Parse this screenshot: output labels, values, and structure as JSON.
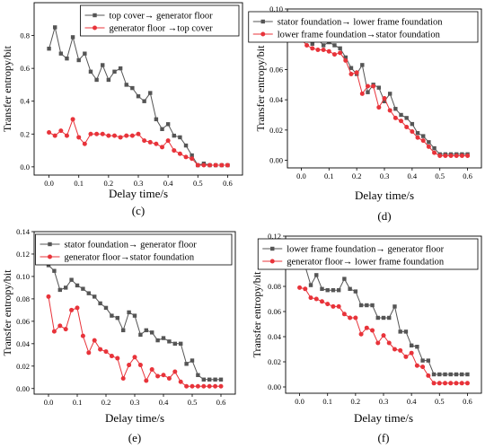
{
  "chart_data": [
    {
      "type": "line",
      "panel_label": "(c)",
      "xlabel": "Delay time/s",
      "ylabel": "Transfer entropy/bit",
      "xlim": [
        -0.05,
        0.65
      ],
      "ylim": [
        -0.05,
        1.0
      ],
      "xticks": [
        "0.0",
        "0.1",
        "0.2",
        "0.3",
        "0.4",
        "0.5",
        "0.6"
      ],
      "yticks": [
        "0.0",
        "0.2",
        "0.4",
        "0.6",
        "0.8"
      ],
      "legend_position": "top-right",
      "x": [
        0.0,
        0.02,
        0.04,
        0.06,
        0.08,
        0.1,
        0.12,
        0.14,
        0.16,
        0.18,
        0.2,
        0.22,
        0.24,
        0.26,
        0.28,
        0.3,
        0.32,
        0.34,
        0.36,
        0.38,
        0.4,
        0.42,
        0.44,
        0.46,
        0.48,
        0.5,
        0.52,
        0.54,
        0.56,
        0.58,
        0.6
      ],
      "series": [
        {
          "name": "top cover→ generator floor",
          "color": "#555555",
          "marker": "square",
          "values": [
            0.72,
            0.85,
            0.69,
            0.66,
            0.79,
            0.65,
            0.69,
            0.58,
            0.53,
            0.62,
            0.53,
            0.58,
            0.6,
            0.5,
            0.48,
            0.43,
            0.4,
            0.45,
            0.29,
            0.23,
            0.26,
            0.19,
            0.18,
            0.13,
            0.07,
            0.01,
            0.02,
            0.01,
            0.01,
            0.01,
            0.01
          ]
        },
        {
          "name": "generator floor →top cover",
          "color": "#e8333a",
          "marker": "circle",
          "values": [
            0.21,
            0.19,
            0.22,
            0.19,
            0.29,
            0.18,
            0.14,
            0.2,
            0.2,
            0.2,
            0.19,
            0.19,
            0.18,
            0.19,
            0.19,
            0.2,
            0.16,
            0.15,
            0.14,
            0.12,
            0.16,
            0.1,
            0.08,
            0.06,
            0.05,
            0.01,
            0.01,
            0.01,
            0.01,
            0.01,
            0.01
          ]
        }
      ]
    },
    {
      "type": "line",
      "panel_label": "(d)",
      "xlabel": "Delay time/s",
      "ylabel": "Transfer entropy/bit",
      "xlim": [
        -0.05,
        0.65
      ],
      "ylim": [
        -0.005,
        0.1
      ],
      "xticks": [
        "0.0",
        "0.1",
        "0.2",
        "0.3",
        "0.4",
        "0.5",
        "0.6"
      ],
      "yticks": [
        "0.00",
        "0.02",
        "0.04",
        "0.06",
        "0.08",
        "0.10"
      ],
      "legend_position": "top-right",
      "x": [
        0.0,
        0.02,
        0.04,
        0.06,
        0.08,
        0.1,
        0.12,
        0.14,
        0.16,
        0.18,
        0.2,
        0.22,
        0.24,
        0.26,
        0.28,
        0.3,
        0.32,
        0.34,
        0.36,
        0.38,
        0.4,
        0.42,
        0.44,
        0.46,
        0.48,
        0.5,
        0.52,
        0.54,
        0.56,
        0.58,
        0.6
      ],
      "series": [
        {
          "name": "stator foundation→ lower frame foundation",
          "color": "#555555",
          "marker": "square",
          "values": [
            0.088,
            0.081,
            0.077,
            0.08,
            0.076,
            0.078,
            0.076,
            0.074,
            0.068,
            0.061,
            0.057,
            0.063,
            0.045,
            0.05,
            0.048,
            0.039,
            0.044,
            0.034,
            0.03,
            0.028,
            0.024,
            0.018,
            0.016,
            0.012,
            0.008,
            0.004,
            0.004,
            0.004,
            0.004,
            0.004,
            0.004
          ]
        },
        {
          "name": "lower frame foundation→stator foundation",
          "color": "#e8333a",
          "marker": "circle",
          "values": [
            0.08,
            0.076,
            0.074,
            0.073,
            0.073,
            0.072,
            0.07,
            0.071,
            0.066,
            0.057,
            0.058,
            0.044,
            0.049,
            0.049,
            0.035,
            0.041,
            0.033,
            0.028,
            0.026,
            0.022,
            0.019,
            0.015,
            0.013,
            0.009,
            0.005,
            0.003,
            0.003,
            0.003,
            0.003,
            0.003,
            0.003
          ]
        }
      ]
    },
    {
      "type": "line",
      "panel_label": "(e)",
      "xlabel": "Delay time/s",
      "ylabel": "Transfer entropy/bit",
      "xlim": [
        -0.05,
        0.65
      ],
      "ylim": [
        -0.005,
        0.14
      ],
      "xticks": [
        "0.0",
        "0.1",
        "0.2",
        "0.3",
        "0.4",
        "0.5",
        "0.6"
      ],
      "yticks": [
        "0.00",
        "0.02",
        "0.04",
        "0.06",
        "0.08",
        "0.10",
        "0.12",
        "0.14"
      ],
      "legend_position": "top-right",
      "x": [
        0.0,
        0.02,
        0.04,
        0.06,
        0.08,
        0.1,
        0.12,
        0.14,
        0.16,
        0.18,
        0.2,
        0.22,
        0.24,
        0.26,
        0.28,
        0.3,
        0.32,
        0.34,
        0.36,
        0.38,
        0.4,
        0.42,
        0.44,
        0.46,
        0.48,
        0.5,
        0.52,
        0.54,
        0.56,
        0.58,
        0.6
      ],
      "series": [
        {
          "name": "stator foundation→ generator floor",
          "color": "#555555",
          "marker": "square",
          "values": [
            0.11,
            0.105,
            0.088,
            0.09,
            0.097,
            0.092,
            0.089,
            0.085,
            0.082,
            0.076,
            0.072,
            0.065,
            0.063,
            0.052,
            0.068,
            0.065,
            0.048,
            0.052,
            0.05,
            0.043,
            0.045,
            0.042,
            0.04,
            0.04,
            0.022,
            0.025,
            0.012,
            0.008,
            0.008,
            0.008,
            0.008
          ]
        },
        {
          "name": "generator floor→stator foundation",
          "color": "#e8333a",
          "marker": "circle",
          "values": [
            0.082,
            0.051,
            0.056,
            0.053,
            0.07,
            0.072,
            0.047,
            0.032,
            0.043,
            0.035,
            0.033,
            0.029,
            0.027,
            0.009,
            0.021,
            0.028,
            0.021,
            0.007,
            0.017,
            0.011,
            0.012,
            0.009,
            0.015,
            0.006,
            0.002,
            0.002,
            0.002,
            0.002,
            0.002,
            0.002,
            0.002
          ]
        }
      ]
    },
    {
      "type": "line",
      "panel_label": "(f)",
      "xlabel": "Delay time/s",
      "ylabel": "Transfer entropy/bit",
      "xlim": [
        -0.05,
        0.65
      ],
      "ylim": [
        -0.005,
        0.12
      ],
      "xticks": [
        "0.0",
        "0.1",
        "0.2",
        "0.3",
        "0.4",
        "0.5",
        "0.6"
      ],
      "yticks": [
        "0.00",
        "0.02",
        "0.04",
        "0.06",
        "0.08",
        "0.10",
        "0.12"
      ],
      "legend_position": "top-right",
      "x": [
        0.0,
        0.02,
        0.04,
        0.06,
        0.08,
        0.1,
        0.12,
        0.14,
        0.16,
        0.18,
        0.2,
        0.22,
        0.24,
        0.26,
        0.28,
        0.3,
        0.32,
        0.34,
        0.36,
        0.38,
        0.4,
        0.42,
        0.44,
        0.46,
        0.48,
        0.5,
        0.52,
        0.54,
        0.56,
        0.58,
        0.6
      ],
      "series": [
        {
          "name": "lower frame foundation→ generator floor",
          "color": "#555555",
          "marker": "square",
          "values": [
            0.096,
            0.096,
            0.081,
            0.089,
            0.078,
            0.077,
            0.077,
            0.077,
            0.086,
            0.078,
            0.076,
            0.065,
            0.065,
            0.065,
            0.055,
            0.055,
            0.055,
            0.064,
            0.044,
            0.044,
            0.033,
            0.032,
            0.021,
            0.021,
            0.01,
            0.01,
            0.01,
            0.01,
            0.01,
            0.01,
            0.01
          ]
        },
        {
          "name": "generator floor→ lower frame foundation",
          "color": "#e8333a",
          "marker": "circle",
          "values": [
            0.079,
            0.078,
            0.071,
            0.07,
            0.068,
            0.066,
            0.064,
            0.064,
            0.058,
            0.055,
            0.055,
            0.042,
            0.047,
            0.045,
            0.035,
            0.041,
            0.035,
            0.03,
            0.029,
            0.024,
            0.027,
            0.017,
            0.016,
            0.009,
            0.003,
            0.003,
            0.003,
            0.003,
            0.003,
            0.003,
            0.003
          ]
        }
      ]
    }
  ]
}
